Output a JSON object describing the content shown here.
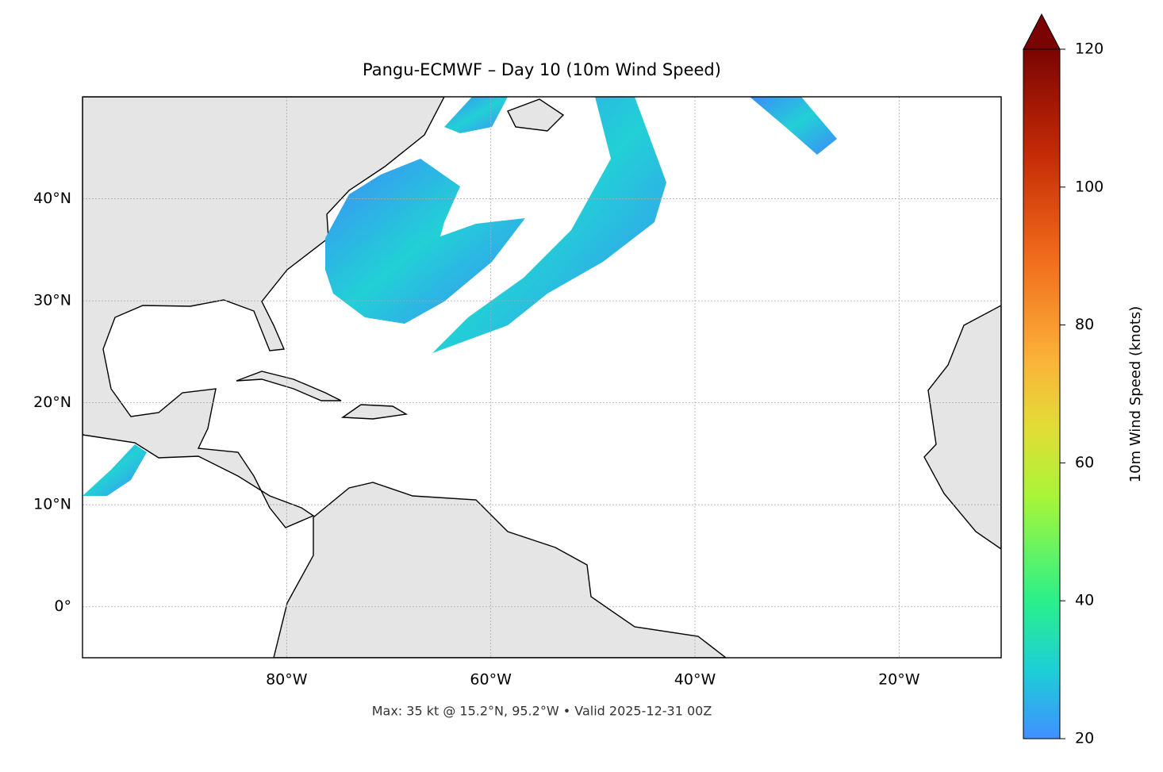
{
  "chart_data": {
    "type": "map",
    "title": "Pangu-ECMWF – Day 10 (10m Wind Speed)",
    "xlim": [
      -100,
      -10
    ],
    "ylim": [
      -5,
      50
    ],
    "xticks": [
      {
        "value": -80,
        "label": "80°W"
      },
      {
        "value": -60,
        "label": "60°W"
      },
      {
        "value": -40,
        "label": "40°W"
      },
      {
        "value": -20,
        "label": "20°W"
      }
    ],
    "yticks": [
      {
        "value": 0,
        "label": "0°"
      },
      {
        "value": 10,
        "label": "10°N"
      },
      {
        "value": 20,
        "label": "20°N"
      },
      {
        "value": 30,
        "label": "30°N"
      },
      {
        "value": 40,
        "label": "40°N"
      }
    ],
    "grid": true,
    "colorbar": {
      "label": "10m Wind Speed (knots)",
      "lim": [
        20,
        120
      ],
      "ticks": [
        20,
        40,
        60,
        80,
        100,
        120
      ]
    },
    "footnote": "Max: 35 kt @ 15.2°N, 95.2°W • Valid 2025-12-31 00Z"
  }
}
